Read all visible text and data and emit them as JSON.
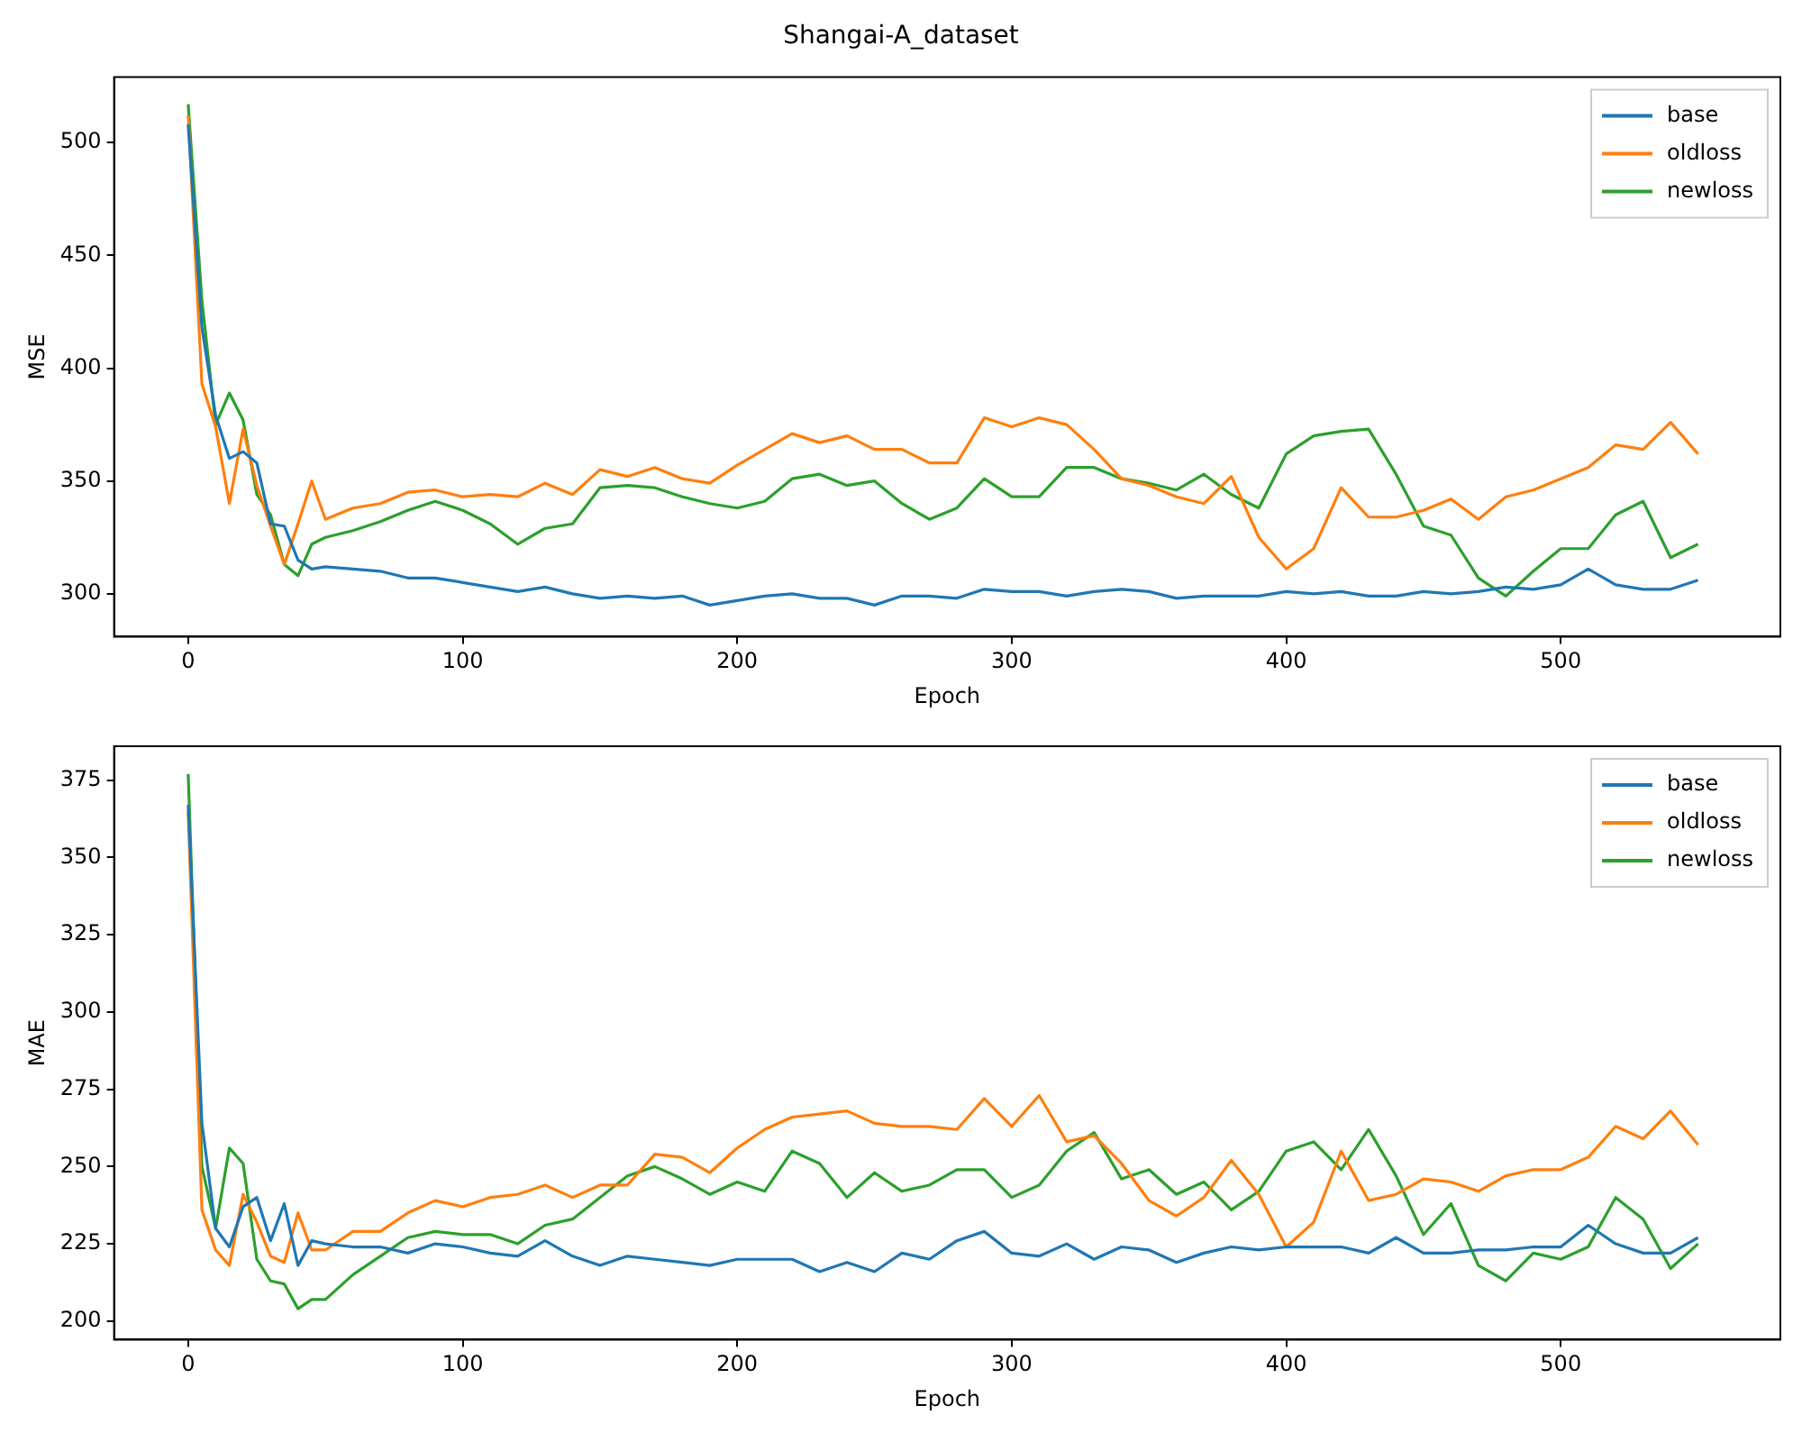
{
  "chart_data": [
    {
      "type": "line",
      "title": "Shangai-A_dataset",
      "xlabel": "Epoch",
      "ylabel": "MSE",
      "x": [
        0,
        5,
        10,
        15,
        20,
        25,
        30,
        35,
        40,
        45,
        50,
        60,
        70,
        80,
        90,
        100,
        110,
        120,
        130,
        140,
        150,
        160,
        170,
        180,
        190,
        200,
        210,
        220,
        230,
        240,
        250,
        260,
        270,
        280,
        290,
        300,
        310,
        320,
        330,
        340,
        350,
        360,
        370,
        380,
        390,
        400,
        410,
        420,
        430,
        440,
        450,
        460,
        470,
        480,
        490,
        500,
        510,
        520,
        530,
        540,
        550
      ],
      "series": [
        {
          "name": "base",
          "color": "#1f77b4",
          "values": [
            508,
            418,
            379,
            360,
            363,
            358,
            331,
            330,
            315,
            311,
            312,
            311,
            310,
            307,
            307,
            305,
            303,
            301,
            303,
            300,
            298,
            299,
            298,
            299,
            295,
            297,
            299,
            300,
            298,
            298,
            295,
            299,
            299,
            298,
            302,
            301,
            301,
            299,
            301,
            302,
            301,
            298,
            299,
            299,
            299,
            301,
            300,
            301,
            299,
            299,
            301,
            300,
            301,
            303,
            302,
            304,
            311,
            304,
            302,
            302,
            306
          ]
        },
        {
          "name": "oldloss",
          "color": "#ff7f0e",
          "values": [
            512,
            393,
            374,
            340,
            373,
            348,
            330,
            313,
            331,
            350,
            333,
            338,
            340,
            345,
            346,
            343,
            344,
            343,
            349,
            344,
            355,
            352,
            356,
            351,
            349,
            357,
            364,
            371,
            367,
            370,
            364,
            364,
            358,
            358,
            378,
            374,
            378,
            375,
            364,
            351,
            348,
            343,
            340,
            352,
            325,
            311,
            320,
            347,
            334,
            334,
            337,
            342,
            333,
            343,
            346,
            351,
            356,
            366,
            364,
            376,
            362
          ]
        },
        {
          "name": "newloss",
          "color": "#2ca02c",
          "values": [
            517,
            430,
            375,
            389,
            377,
            344,
            335,
            313,
            308,
            322,
            325,
            328,
            332,
            337,
            341,
            337,
            331,
            322,
            329,
            331,
            347,
            348,
            347,
            343,
            340,
            338,
            341,
            351,
            353,
            348,
            350,
            340,
            333,
            338,
            351,
            343,
            343,
            356,
            356,
            351,
            349,
            346,
            353,
            344,
            338,
            362,
            370,
            372,
            373,
            353,
            330,
            326,
            307,
            299,
            310,
            320,
            320,
            335,
            341,
            316,
            322
          ]
        }
      ],
      "xlim": [
        -27,
        580
      ],
      "xticks": [
        0,
        100,
        200,
        300,
        400,
        500
      ],
      "ylim": [
        281,
        529
      ],
      "yticks": [
        300,
        350,
        400,
        450,
        500
      ],
      "grid": false,
      "legend": "top right",
      "marker": "none",
      "line_style": "solid"
    },
    {
      "type": "line",
      "xlabel": "Epoch",
      "ylabel": "MAE",
      "x": [
        0,
        5,
        10,
        15,
        20,
        25,
        30,
        35,
        40,
        45,
        50,
        60,
        70,
        80,
        90,
        100,
        110,
        120,
        130,
        140,
        150,
        160,
        170,
        180,
        190,
        200,
        210,
        220,
        230,
        240,
        250,
        260,
        270,
        280,
        290,
        300,
        310,
        320,
        330,
        340,
        350,
        360,
        370,
        380,
        390,
        400,
        410,
        420,
        430,
        440,
        450,
        460,
        470,
        480,
        490,
        500,
        510,
        520,
        530,
        540,
        550
      ],
      "series": [
        {
          "name": "base",
          "color": "#1f77b4",
          "values": [
            367,
            264,
            230,
            224,
            237,
            240,
            226,
            238,
            218,
            226,
            225,
            224,
            224,
            222,
            225,
            224,
            222,
            221,
            226,
            221,
            218,
            221,
            220,
            219,
            218,
            220,
            220,
            220,
            216,
            219,
            216,
            222,
            220,
            226,
            229,
            222,
            221,
            225,
            220,
            224,
            223,
            219,
            222,
            224,
            223,
            224,
            224,
            224,
            222,
            227,
            222,
            222,
            223,
            223,
            224,
            224,
            231,
            225,
            222,
            222,
            227
          ]
        },
        {
          "name": "oldloss",
          "color": "#ff7f0e",
          "values": [
            365,
            236,
            223,
            218,
            241,
            232,
            221,
            219,
            235,
            223,
            223,
            229,
            229,
            235,
            239,
            237,
            240,
            241,
            244,
            240,
            244,
            244,
            254,
            253,
            248,
            256,
            262,
            266,
            267,
            268,
            264,
            263,
            263,
            262,
            272,
            263,
            273,
            258,
            260,
            251,
            239,
            234,
            240,
            252,
            241,
            224,
            232,
            255,
            239,
            241,
            246,
            245,
            242,
            247,
            249,
            249,
            253,
            263,
            259,
            268,
            257
          ]
        },
        {
          "name": "newloss",
          "color": "#2ca02c",
          "values": [
            377,
            250,
            230,
            256,
            251,
            220,
            213,
            212,
            204,
            207,
            207,
            215,
            221,
            227,
            229,
            228,
            228,
            225,
            231,
            233,
            240,
            247,
            250,
            246,
            241,
            245,
            242,
            255,
            251,
            240,
            248,
            242,
            244,
            249,
            249,
            240,
            244,
            255,
            261,
            246,
            249,
            241,
            245,
            236,
            242,
            255,
            258,
            249,
            262,
            247,
            228,
            238,
            218,
            213,
            222,
            220,
            224,
            240,
            233,
            217,
            225
          ]
        }
      ],
      "xlim": [
        -27,
        580
      ],
      "xticks": [
        0,
        100,
        200,
        300,
        400,
        500
      ],
      "ylim": [
        194,
        386
      ],
      "yticks": [
        200,
        225,
        250,
        275,
        300,
        325,
        350,
        375
      ],
      "grid": false,
      "legend": "top right",
      "marker": "none",
      "line_style": "solid"
    }
  ]
}
